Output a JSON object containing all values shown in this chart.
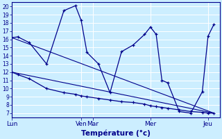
{
  "xlabel": "Température (°c)",
  "background_color": "#cceeff",
  "grid_color": "#aaddcc",
  "line_color": "#00008b",
  "ylim": [
    6.5,
    20.5
  ],
  "yticks": [
    7,
    8,
    9,
    10,
    11,
    12,
    13,
    14,
    15,
    16,
    17,
    18,
    19,
    20
  ],
  "day_labels": [
    "Lun",
    "Ven",
    "Mar",
    "Mer",
    "Jeu"
  ],
  "day_positions": [
    0,
    36,
    42,
    72,
    102
  ],
  "xlim": [
    0,
    108
  ],
  "series1_x": [
    0,
    3,
    9,
    18,
    27,
    33,
    36,
    39,
    45,
    51,
    57,
    63,
    69,
    72,
    75,
    78,
    81,
    87,
    93,
    99,
    102,
    105
  ],
  "series1_y": [
    16.2,
    16.3,
    15.6,
    13.0,
    19.5,
    20.1,
    18.3,
    14.4,
    13.0,
    9.5,
    14.5,
    15.3,
    16.6,
    17.5,
    16.6,
    11.0,
    10.7,
    7.2,
    7.0,
    9.6,
    16.4,
    17.8
  ],
  "series2_x": [
    0,
    3,
    9,
    18,
    27,
    33,
    36,
    39,
    45,
    51,
    57,
    63,
    69,
    72,
    75,
    78,
    81,
    87,
    93,
    99,
    102,
    105
  ],
  "series2_y": [
    12.0,
    11.7,
    11.2,
    10.0,
    9.5,
    9.3,
    9.1,
    9.0,
    8.8,
    8.6,
    8.4,
    8.3,
    8.1,
    7.9,
    7.8,
    7.7,
    7.6,
    7.4,
    7.2,
    7.1,
    7.0,
    7.0
  ],
  "trend1_x": [
    0,
    105
  ],
  "trend1_y": [
    16.2,
    7.0
  ],
  "trend2_x": [
    0,
    105
  ],
  "trend2_y": [
    12.0,
    7.0
  ]
}
